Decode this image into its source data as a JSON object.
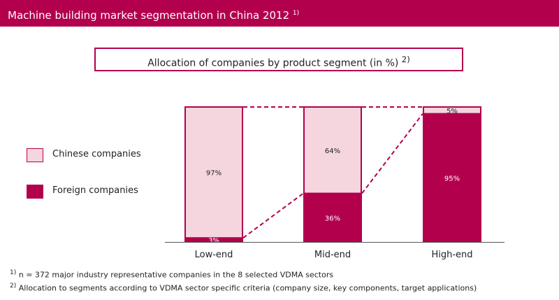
{
  "header": {
    "title": "Machine building market segmentation in China 2012",
    "note_mark": "1)"
  },
  "subtitle": {
    "text": "Allocation of companies by product segment (in %)",
    "note_mark": "2)"
  },
  "colors": {
    "brand": "#b3004d",
    "chinese": "#f5d6de",
    "foreign": "#b3004d"
  },
  "legend": [
    {
      "label": "Chinese companies",
      "color": "#f5d6de"
    },
    {
      "label": "Foreign companies",
      "color": "#b3004d"
    }
  ],
  "chart_data": {
    "type": "bar",
    "stacked": true,
    "categories": [
      "Low-end",
      "Mid-end",
      "High-end"
    ],
    "series": [
      {
        "name": "Foreign companies",
        "values": [
          3,
          36,
          95
        ],
        "labels": [
          "3%",
          "36%",
          "95%"
        ]
      },
      {
        "name": "Chinese companies",
        "values": [
          97,
          64,
          5
        ],
        "labels": [
          "97%",
          "64%",
          "5%"
        ]
      }
    ],
    "ylim": [
      0,
      100
    ],
    "grid": false,
    "legend_position": "left"
  },
  "footnotes": [
    {
      "mark": "1)",
      "text": "n = 372 major industry representative companies in the 8 selected VDMA sectors"
    },
    {
      "mark": "2)",
      "text": "Allocation to segments according to VDMA sector specific criteria (company size, key components, target applications)"
    }
  ]
}
